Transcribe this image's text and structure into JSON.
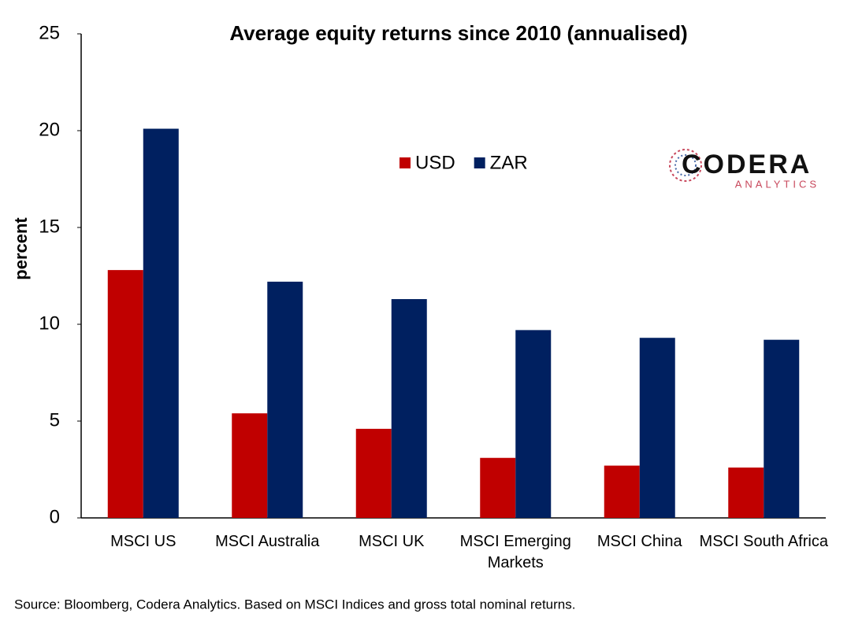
{
  "chart_data": {
    "type": "bar",
    "title": "Average equity returns since 2010 (annualised)",
    "y_label": "percent",
    "categories": [
      "MSCI US",
      "MSCI Australia",
      "MSCI UK",
      "MSCI Emerging Markets",
      "MSCI China",
      "MSCI South Africa"
    ],
    "series": [
      {
        "name": "USD",
        "color": "#c00000",
        "values": [
          12.8,
          5.4,
          4.6,
          3.1,
          2.7,
          2.6
        ]
      },
      {
        "name": "ZAR",
        "color": "#002060",
        "values": [
          20.1,
          12.2,
          11.3,
          9.7,
          9.3,
          9.2
        ]
      }
    ],
    "ylim": [
      0,
      25
    ],
    "yticks": [
      0,
      5,
      10,
      15,
      20,
      25
    ],
    "grid": false,
    "legend": "top",
    "source": "Source: Bloomberg, Codera Analytics. Based on MSCI Indices and gross total nominal returns.",
    "logo": {
      "name": "CODERA",
      "tagline": "ANALYTICS"
    }
  }
}
